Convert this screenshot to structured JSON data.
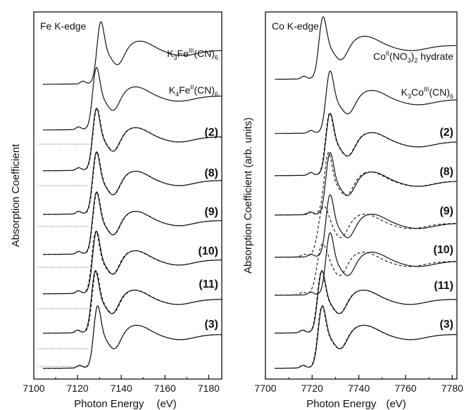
{
  "chart_data": [
    {
      "type": "line",
      "title": "Fe K-edge",
      "xlabel": "Photon Energy",
      "xlabel_unit": "(eV)",
      "ylabel": "Absorption Coefficient",
      "xlim": [
        7100,
        7186
      ],
      "xticks": [
        7100,
        7120,
        7140,
        7160,
        7180
      ],
      "edge_energy": 7128,
      "labels": [
        {
          "base": "K",
          "sub1": "3",
          "mid": "Fe",
          "sup": "III",
          "tail": "(CN)",
          "sub2": "6",
          "bold": false
        },
        {
          "base": "K",
          "sub1": "4",
          "mid": "Fe",
          "sup": "II",
          "tail": "(CN)",
          "sub2": "6",
          "bold": false
        },
        {
          "text": "(2)",
          "bold": true
        },
        {
          "text": "(8)",
          "bold": true
        },
        {
          "text": "(9)",
          "bold": true
        },
        {
          "text": "(10)",
          "bold": true
        },
        {
          "text": "(11)",
          "bold": true
        },
        {
          "text": "(3)",
          "bold": true
        }
      ],
      "series": [
        {
          "peak": 7130.5,
          "dashed_peak": null
        },
        {
          "peak": 7128.5,
          "dashed_peak": null
        },
        {
          "peak": 7128.5,
          "dashed_peak": 7128.7
        },
        {
          "peak": 7128.5,
          "dashed_peak": 7128.7
        },
        {
          "peak": 7128.5,
          "dashed_peak": 7128.7
        },
        {
          "peak": 7128.5,
          "dashed_peak": 7128.2
        },
        {
          "peak": 7128.0,
          "dashed_peak": 7128.3
        },
        {
          "peak": 7129.0,
          "dashed_peak": 7129.0
        }
      ]
    },
    {
      "type": "line",
      "title": "Co K-edge",
      "xlabel": "Photon Energy",
      "xlabel_unit": "(eV)",
      "ylabel": "Absorption Coefficient (arb. units)",
      "xlim": [
        7700,
        7782
      ],
      "xticks": [
        7700,
        7720,
        7740,
        7760,
        7780
      ],
      "labels": [
        {
          "base": "Co",
          "sup": "II",
          "tail": "(NO",
          "sub1": "3",
          "tail2": ")",
          "sub2": "2",
          "tail3": " hydrate",
          "bold": false
        },
        {
          "base": "K",
          "sub1": "3",
          "mid": "Co",
          "sup": "III",
          "tail": "(CN)",
          "sub2": "6",
          "bold": false
        },
        {
          "text": "(2)",
          "bold": true
        },
        {
          "text": "(8)",
          "bold": true
        },
        {
          "text": "(9)",
          "bold": true
        },
        {
          "text": "(10)",
          "bold": true
        },
        {
          "text": "(11)",
          "bold": true
        },
        {
          "text": "(3)",
          "bold": true
        }
      ],
      "series": [
        {
          "peak": 7724.5,
          "dashed_peak": null
        },
        {
          "peak": 7727.5,
          "dashed_peak": null
        },
        {
          "peak": 7727.5,
          "dashed_peak": 7727.3
        },
        {
          "peak": 7727.5,
          "dashed_peak": 7726.8
        },
        {
          "peak": 7727.5,
          "dashed_peak": 7724.5
        },
        {
          "peak": 7727.5,
          "dashed_peak": 7724.0
        },
        {
          "peak": 7724.0,
          "dashed_peak": 7723.8
        },
        {
          "peak": 7724.2,
          "dashed_peak": 7724.0
        }
      ]
    }
  ]
}
